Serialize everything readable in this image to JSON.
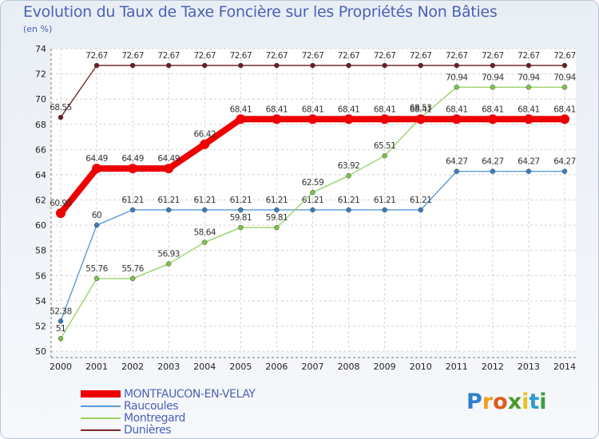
{
  "title": "Evolution du Taux de Taxe Foncière sur les Propriétés Non Bâties",
  "unit": "(en %)",
  "logo": {
    "letters": [
      "P",
      "r",
      "o",
      "x",
      "i",
      "t",
      "i"
    ],
    "colors": [
      "#2e7fd0",
      "#f0a020",
      "#e05a1a",
      "#4a9a2a",
      "#f0c020",
      "#2e9ad0",
      "#3aa040"
    ]
  },
  "chart_data": {
    "type": "line",
    "title": "Evolution du Taux de Taxe Foncière sur les Propriétés Non Bâties",
    "ylabel": "(en %)",
    "xlabel": "",
    "ylim": [
      50,
      74
    ],
    "yticks": [
      50,
      52,
      54,
      56,
      58,
      60,
      62,
      64,
      66,
      68,
      70,
      72,
      74
    ],
    "x": [
      "2000",
      "2001",
      "2002",
      "2003",
      "2004",
      "2005",
      "2006",
      "2007",
      "2008",
      "2009",
      "2010",
      "2011",
      "2012",
      "2013",
      "2014"
    ],
    "series": [
      {
        "name": "Dunières",
        "color": "#7a2a2a",
        "marker": "#6b1f1f",
        "width": 1.4,
        "values": [
          68.55,
          72.67,
          72.67,
          72.67,
          72.67,
          72.67,
          72.67,
          72.67,
          72.67,
          72.67,
          72.67,
          72.67,
          72.67,
          72.67,
          72.67
        ],
        "labels": [
          "68.55",
          "72.67",
          "72.67",
          "72.67",
          "72.67",
          "72.67",
          "72.67",
          "72.67",
          "72.67",
          "72.67",
          "72.67",
          "72.67",
          "72.67",
          "72.67",
          "72.67"
        ]
      },
      {
        "name": "Raucoules",
        "color": "#5b9bd5",
        "marker": "#3a7dc0",
        "width": 1.4,
        "values": [
          52.38,
          60,
          61.21,
          61.21,
          61.21,
          61.21,
          61.21,
          61.21,
          61.21,
          61.21,
          61.21,
          64.27,
          64.27,
          64.27,
          64.27
        ],
        "labels": [
          "52.38",
          "60",
          "61.21",
          "61.21",
          "61.21",
          "61.21",
          "61.21",
          "61.21",
          "61.21",
          "61.21",
          "61.21",
          "64.27",
          "64.27",
          "64.27",
          "64.27"
        ]
      },
      {
        "name": "Montregard",
        "color": "#9bd36a",
        "marker": "#7cc44a",
        "width": 1.4,
        "values": [
          51,
          55.76,
          55.76,
          56.93,
          58.64,
          59.81,
          59.81,
          62.59,
          63.92,
          65.51,
          68.53,
          70.94,
          70.94,
          70.94,
          70.94
        ],
        "labels": [
          "51",
          "55.76",
          "55.76",
          "56.93",
          "58.64",
          "59.81",
          "59.81",
          "62.59",
          "63.92",
          "65.51",
          "68.53",
          "70.94",
          "70.94",
          "70.94",
          "70.94"
        ]
      },
      {
        "name": "MONTFAUCON-EN-VELAY",
        "color": "#ee0000",
        "marker": "#ee0000",
        "width": 8,
        "values": [
          60.95,
          64.49,
          64.49,
          64.49,
          66.42,
          68.41,
          68.41,
          68.41,
          68.41,
          68.41,
          68.41,
          68.41,
          68.41,
          68.41,
          68.41
        ],
        "labels": [
          "60.95",
          "64.49",
          "64.49",
          "64.49",
          "66.42",
          "68.41",
          "68.41",
          "68.41",
          "68.41",
          "68.41",
          "68.41",
          "68.41",
          "68.41",
          "68.41",
          "68.41"
        ]
      }
    ],
    "legend": [
      "MONTFAUCON-EN-VELAY",
      "Raucoules",
      "Montregard",
      "Dunières"
    ]
  }
}
